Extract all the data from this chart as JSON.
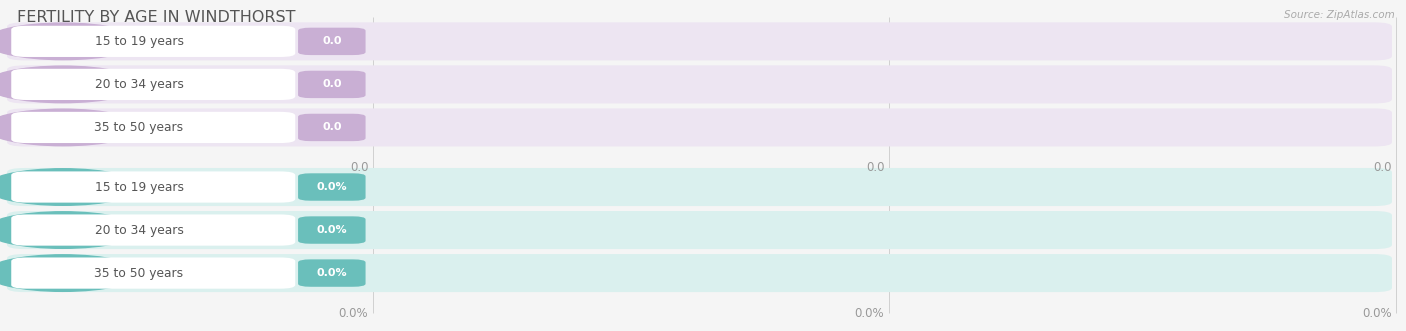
{
  "title": "FERTILITY BY AGE IN WINDTHORST",
  "source_text": "Source: ZipAtlas.com",
  "background_color": "#f5f5f5",
  "top_section": {
    "categories": [
      "15 to 19 years",
      "20 to 34 years",
      "35 to 50 years"
    ],
    "values": [
      0.0,
      0.0,
      0.0
    ],
    "bar_bg_color": "#ede5f2",
    "bar_fill_color": "#c9afd4",
    "label_color": "#555555",
    "tick_labels": [
      "0.0",
      "0.0",
      "0.0"
    ],
    "value_label": "0.0"
  },
  "bottom_section": {
    "categories": [
      "15 to 19 years",
      "20 to 34 years",
      "35 to 50 years"
    ],
    "values": [
      0.0,
      0.0,
      0.0
    ],
    "bar_bg_color": "#daf0ee",
    "bar_fill_color": "#6abfbb",
    "label_color": "#555555",
    "tick_labels": [
      "0.0%",
      "0.0%",
      "0.0%"
    ],
    "value_label": "0.0%"
  },
  "grid_line_color": "#d0d0d0",
  "tick_label_color": "#999999",
  "title_color": "#555555",
  "source_color": "#aaaaaa",
  "fig_width": 14.06,
  "fig_height": 3.31,
  "dpi": 100
}
